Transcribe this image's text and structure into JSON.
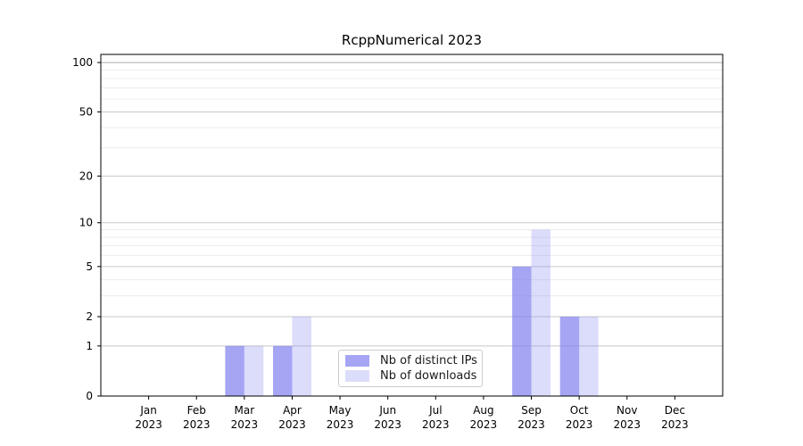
{
  "chart_data": {
    "type": "bar",
    "title": "RcppNumerical 2023",
    "categories": [
      "Jan 2023",
      "Feb 2023",
      "Mar 2023",
      "Apr 2023",
      "May 2023",
      "Jun 2023",
      "Jul 2023",
      "Aug 2023",
      "Sep 2023",
      "Oct 2023",
      "Nov 2023",
      "Dec 2023"
    ],
    "series": [
      {
        "name": "Nb of distinct IPs",
        "color": "#7f7fef",
        "alpha": 0.7,
        "values": [
          0,
          0,
          1,
          1,
          0,
          0,
          0,
          0,
          5,
          2,
          0,
          0
        ]
      },
      {
        "name": "Nb of downloads",
        "color": "#7f7fef",
        "alpha": 0.27,
        "values": [
          0,
          0,
          1,
          2,
          0,
          0,
          0,
          0,
          9,
          2,
          0,
          0
        ]
      }
    ],
    "xlabel": "",
    "ylabel": "",
    "yscale": "log1p",
    "ylim": [
      0,
      112
    ],
    "yticks": [
      0,
      1,
      2,
      5,
      10,
      20,
      50,
      100
    ],
    "yticks_minor": [
      3,
      4,
      6,
      7,
      8,
      9,
      30,
      40,
      60,
      70,
      80,
      90
    ],
    "grid": true,
    "grid_major_color": "#c8c8c8",
    "grid_minor_color": "#ececec",
    "grid_top_color": "#ababab",
    "axis_color": "#000000",
    "legend_position": "lower center"
  }
}
